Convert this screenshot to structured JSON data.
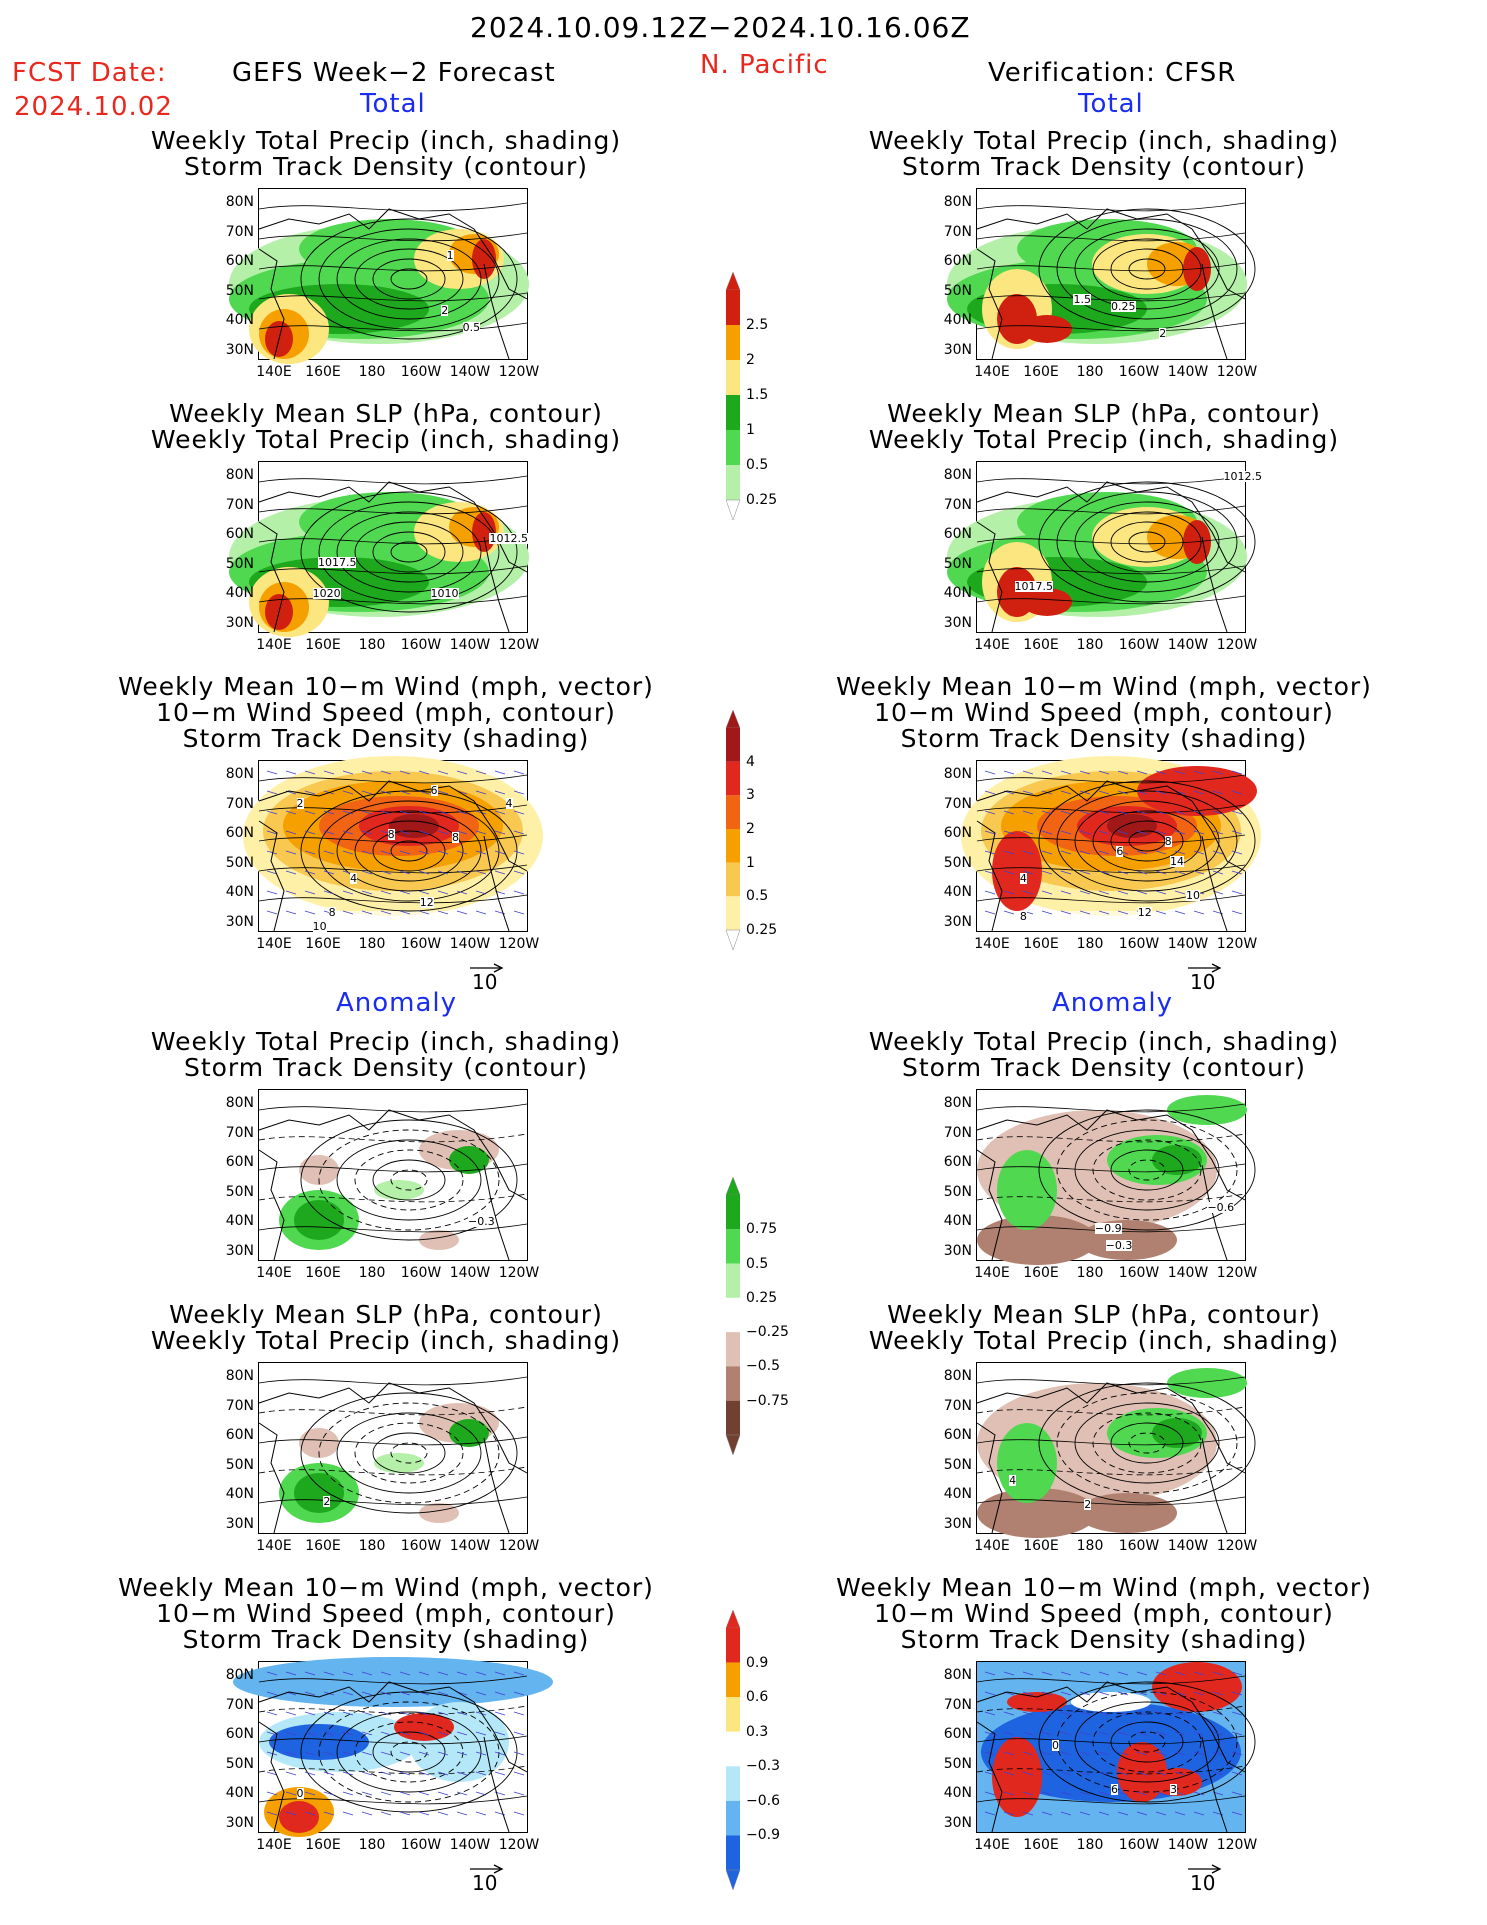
{
  "header": {
    "date_range": "2024.10.09.12Z−2024.10.16.06Z",
    "fcst_label": "FCST Date:",
    "fcst_date": "2024.10.02",
    "forecast_title": "GEFS Week−2 Forecast",
    "region": "N. Pacific",
    "verification_title": "Verification: CFSR"
  },
  "sections": {
    "total": "Total",
    "anomaly": "Anomaly"
  },
  "titles": {
    "precip_storm": [
      "Weekly Total Precip (inch, shading)",
      "Storm Track Density (contour)"
    ],
    "slp_precip": [
      "Weekly Mean SLP (hPa, contour)",
      "Weekly Total Precip (inch, shading)"
    ],
    "wind_storm": [
      "Weekly Mean 10−m Wind (mph, vector)",
      "10−m Wind Speed (mph, contour)",
      "Storm Track Density (shading)"
    ]
  },
  "axes": {
    "lat": [
      "80N",
      "70N",
      "60N",
      "50N",
      "40N",
      "30N"
    ],
    "lon": [
      "140E",
      "160E",
      "180",
      "160W",
      "140W",
      "120W"
    ]
  },
  "vector_ref": "10",
  "colorbars": {
    "precip_total": {
      "labels": [
        "2.5",
        "2",
        "1.5",
        "1",
        "0.5",
        "0.25"
      ],
      "colors": [
        "#d02010",
        "#f6a000",
        "#fce680",
        "#1ea81e",
        "#50d850",
        "#b4f0a8"
      ]
    },
    "storm_total": {
      "labels": [
        "4",
        "3",
        "2",
        "1",
        "0.5",
        "0.25"
      ],
      "colors": [
        "#a01818",
        "#e0281e",
        "#f06414",
        "#f6a000",
        "#f8c850",
        "#fff0a8"
      ]
    },
    "precip_anom": {
      "labels": [
        "0.75",
        "0.5",
        "0.25",
        "−0.25",
        "−0.5",
        "−0.75"
      ],
      "colors": [
        "#1ea81e",
        "#50d850",
        "#b4f0a8",
        "#ffffff",
        "#e0c0b4",
        "#b08070",
        "#704030"
      ]
    },
    "storm_anom": {
      "labels": [
        "0.9",
        "0.6",
        "0.3",
        "−0.3",
        "−0.6",
        "−0.9"
      ],
      "colors": [
        "#e0281e",
        "#f6a000",
        "#fce680",
        "#ffffff",
        "#b4e8f8",
        "#64b4f0",
        "#1e64e0"
      ]
    }
  },
  "contour_labels": {
    "f_precip": [
      "1",
      "2",
      "0.5"
    ],
    "v_precip": [
      "1.5",
      "0.25",
      "2"
    ],
    "f_slp": [
      "1017.5",
      "1012.5",
      "1020",
      "1010"
    ],
    "v_slp": [
      "1012.5",
      "1017.5"
    ],
    "f_wind": [
      "6",
      "2",
      "8",
      "8",
      "4",
      "4",
      "12",
      "8",
      "10"
    ],
    "v_wind": [
      "8",
      "6",
      "14",
      "4",
      "10",
      "8",
      "12"
    ],
    "f_panom": [
      "−0.3"
    ],
    "v_panom": [
      "−0.6",
      "−0.9",
      "−0.3"
    ],
    "f_slpanom": [
      "2"
    ],
    "v_slpanom": [
      "4",
      "2"
    ],
    "f_wanom": [
      "0"
    ],
    "v_wanom": [
      "0",
      "6",
      "3"
    ]
  }
}
